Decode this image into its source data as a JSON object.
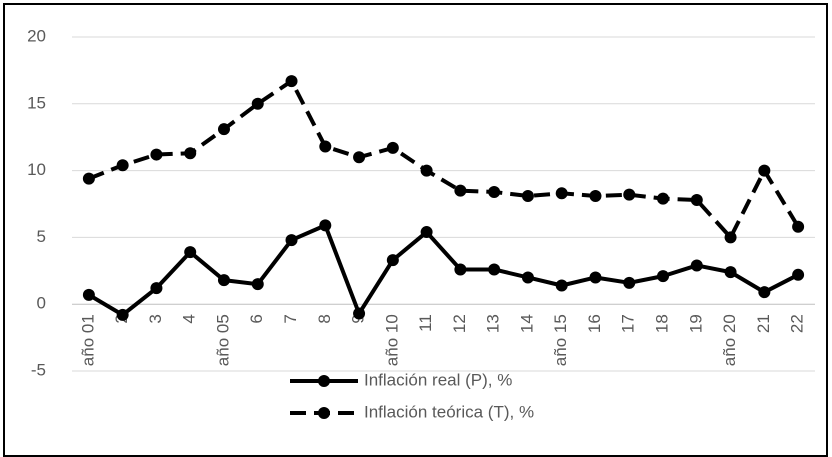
{
  "chart_data": {
    "type": "line",
    "categories": [
      "año 01",
      "2",
      "3",
      "4",
      "año 05",
      "6",
      "7",
      "8",
      "9",
      "año 10",
      "11",
      "12",
      "13",
      "14",
      "año 15",
      "16",
      "17",
      "18",
      "19",
      "año 20",
      "21",
      "22"
    ],
    "series": [
      {
        "name": "Inflación real (P), %",
        "color": "#000000",
        "dashed": false,
        "values": [
          0.7,
          -0.8,
          1.2,
          3.9,
          1.8,
          1.5,
          4.8,
          5.9,
          -0.7,
          3.3,
          5.4,
          2.6,
          2.6,
          2.0,
          1.4,
          2.0,
          1.6,
          2.1,
          2.9,
          2.4,
          0.9,
          2.2
        ]
      },
      {
        "name": "Inflación teórica (T), %",
        "color": "#000000",
        "dashed": true,
        "values": [
          9.4,
          10.4,
          11.2,
          11.3,
          13.1,
          15.0,
          16.7,
          11.8,
          11.0,
          11.7,
          10.0,
          8.5,
          8.4,
          8.1,
          8.3,
          8.1,
          8.2,
          7.9,
          7.8,
          5.0,
          10.0,
          5.8
        ]
      }
    ],
    "ylim": [
      -5,
      20
    ],
    "yticks": [
      -5,
      0,
      5,
      10,
      15,
      20
    ],
    "grid": true,
    "legend": "bottom"
  }
}
